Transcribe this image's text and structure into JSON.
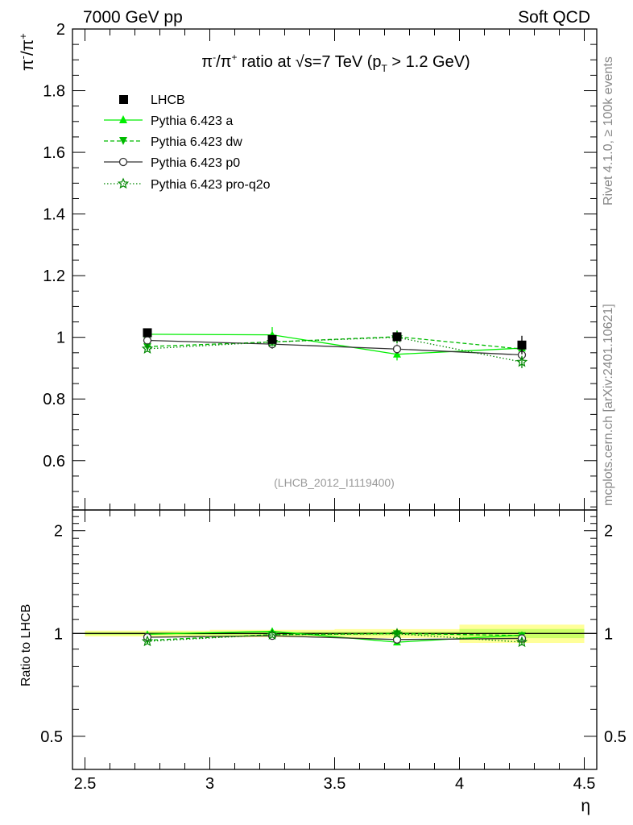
{
  "header": {
    "left": "7000 GeV pp",
    "right": "Soft QCD"
  },
  "side_labels": {
    "rivet": "Rivet 4.1.0, ≥ 100k events",
    "mcplots": "mcplots.cern.ch [arXiv:2401.10621]"
  },
  "colors": {
    "lhcb": "#000000",
    "a": "#00ee00",
    "dw": "#00bb00",
    "p0": "#333333",
    "proq2o": "#008800",
    "band_outer": "#ffff99",
    "band_inner": "#ccff66"
  },
  "chart_data": {
    "type": "line",
    "title_parts": {
      "pre": "π",
      "sup1": "-",
      "mid": "/π",
      "sup2": "+",
      "post": " ratio at ",
      "root": "√",
      "s": "s=7 TeV (p",
      "sub": "T",
      "tail": " > 1.2 GeV)"
    },
    "ylabel_parts": {
      "a": "π",
      "sup1": "-",
      "b": "/π",
      "sup2": "+"
    },
    "xlabel": "η",
    "ratio_ylabel": "Ratio to LHCB",
    "watermark": "(LHCB_2012_I1119400)",
    "xlim": [
      2.45,
      4.55
    ],
    "ylim": [
      0.44,
      2.0
    ],
    "ratio_ylim": [
      0.4,
      2.3
    ],
    "xticks": [
      2.5,
      3,
      3.5,
      4,
      4.5
    ],
    "xtick_labels": [
      "2.5",
      "3",
      "3.5",
      "4",
      "4.5"
    ],
    "yticks": [
      0.6,
      0.8,
      1,
      1.2,
      1.4,
      1.6,
      1.8,
      2
    ],
    "ytick_labels": [
      "0.6",
      "0.8",
      "1",
      "1.2",
      "1.4",
      "1.6",
      "1.8",
      "2"
    ],
    "ratio_yticks": [
      0.5,
      1,
      2
    ],
    "ratio_ytick_labels": [
      "0.5",
      "1",
      "2"
    ],
    "x": [
      2.75,
      3.25,
      3.75,
      4.25
    ],
    "bins": [
      [
        2.5,
        3.0
      ],
      [
        3.0,
        3.5
      ],
      [
        3.5,
        4.0
      ],
      [
        4.0,
        4.5
      ]
    ],
    "series": [
      {
        "key": "lhcb",
        "name": "LHCB",
        "values": [
          1.015,
          0.993,
          1.002,
          0.975
        ],
        "errors": [
          0.01,
          0.012,
          0.012,
          0.03
        ],
        "band_inner": [
          0.01,
          0.012,
          0.012,
          0.03
        ],
        "band_outer": [
          0.02,
          0.025,
          0.03,
          0.06
        ]
      },
      {
        "key": "a",
        "name": "Pythia 6.423 a",
        "values": [
          1.01,
          1.008,
          0.945,
          0.965
        ],
        "errors": [
          0.012,
          0.025,
          0.02,
          0.018
        ]
      },
      {
        "key": "dw",
        "name": "Pythia 6.423 dw",
        "values": [
          0.97,
          0.985,
          1.002,
          0.962
        ],
        "errors": [
          0.01,
          0.015,
          0.02,
          0.015
        ]
      },
      {
        "key": "p0",
        "name": "Pythia 6.423 p0",
        "values": [
          0.99,
          0.978,
          0.962,
          0.943
        ],
        "errors": [
          0.01,
          0.015,
          0.015,
          0.015
        ]
      },
      {
        "key": "proq2o",
        "name": "Pythia 6.423 pro-q2o",
        "values": [
          0.963,
          0.985,
          1.0,
          0.92
        ],
        "errors": [
          0.01,
          0.015,
          0.02,
          0.02
        ]
      }
    ],
    "legend_position": "top-left"
  }
}
